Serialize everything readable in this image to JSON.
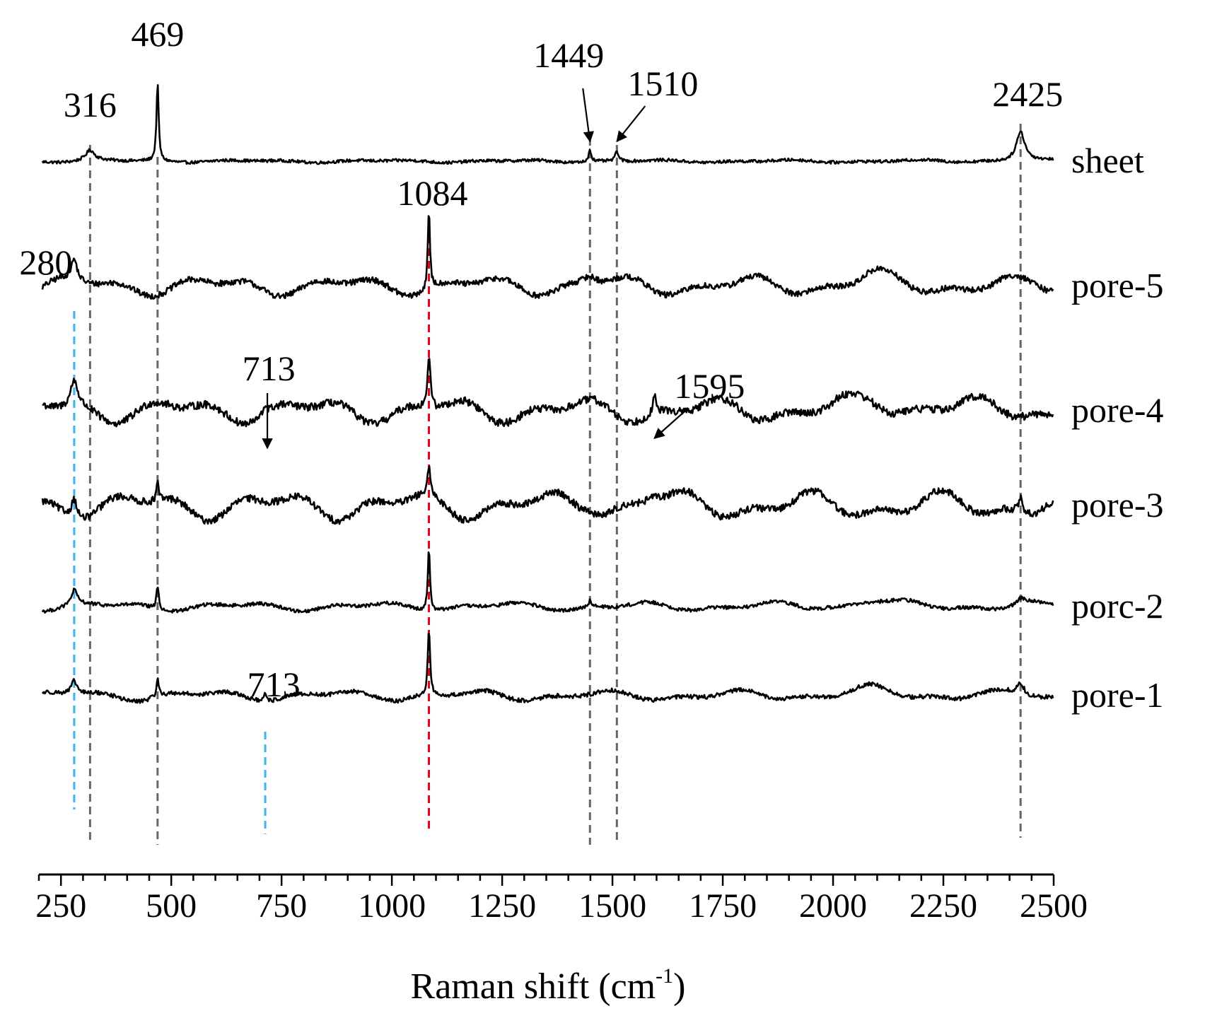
{
  "chart_data": {
    "type": "line",
    "title": "",
    "xlabel_main": "Raman shift (cm",
    "xlabel_sup": "-1",
    "xlabel_close": ")",
    "ylabel": "",
    "xlim": [
      200,
      2500
    ],
    "x_ticks": [
      250,
      500,
      750,
      1000,
      1250,
      1500,
      1750,
      2000,
      2250,
      2500
    ],
    "x_tick_labels": [
      "250",
      "500",
      "750",
      "1000",
      "1250",
      "1500",
      "1750",
      "2000",
      "2250",
      "2500"
    ],
    "x_minor_step": 50,
    "offset_spectra": true,
    "grid": false,
    "series": [
      {
        "name": "sheet",
        "baseline": 0,
        "peaks": [
          {
            "x": 316,
            "h": 0.35,
            "w": 12
          },
          {
            "x": 469,
            "h": 2.6,
            "w": 3
          },
          {
            "x": 1449,
            "h": 0.4,
            "w": 4
          },
          {
            "x": 1510,
            "h": 0.35,
            "w": 4
          },
          {
            "x": 2425,
            "h": 1.0,
            "w": 12
          }
        ],
        "noise": 0.05,
        "wave": 0.03
      },
      {
        "name": "pore-5",
        "baseline": -4.2,
        "peaks": [
          {
            "x": 280,
            "h": 0.7,
            "w": 8
          },
          {
            "x": 1084,
            "h": 2.6,
            "w": 3
          },
          {
            "x": 1449,
            "h": 0.3,
            "w": 20
          },
          {
            "x": 2090,
            "h": 0.3,
            "w": 40
          }
        ],
        "noise": 0.1,
        "wave": 0.22
      },
      {
        "name": "pore-4",
        "baseline": -8.4,
        "peaks": [
          {
            "x": 280,
            "h": 0.9,
            "w": 10
          },
          {
            "x": 713,
            "h": 0.3,
            "w": 4
          },
          {
            "x": 1084,
            "h": 1.8,
            "w": 4
          },
          {
            "x": 1595,
            "h": 0.6,
            "w": 4
          },
          {
            "x": 2090,
            "h": 0.3,
            "w": 50
          },
          {
            "x": 2230,
            "h": 0.2,
            "w": 40
          }
        ],
        "noise": 0.13,
        "wave": 0.28
      },
      {
        "name": "pore-3",
        "baseline": -11.6,
        "peaks": [
          {
            "x": 280,
            "h": 0.7,
            "w": 8
          },
          {
            "x": 469,
            "h": 0.6,
            "w": 3
          },
          {
            "x": 1084,
            "h": 0.9,
            "w": 4
          },
          {
            "x": 1449,
            "h": 0.2,
            "w": 20
          },
          {
            "x": 1590,
            "h": 0.3,
            "w": 25
          },
          {
            "x": 2425,
            "h": 0.5,
            "w": 6
          }
        ],
        "noise": 0.12,
        "wave": 0.32
      },
      {
        "name": "porc-2",
        "baseline": -15.0,
        "peaks": [
          {
            "x": 280,
            "h": 0.5,
            "w": 8
          },
          {
            "x": 469,
            "h": 0.8,
            "w": 3
          },
          {
            "x": 1084,
            "h": 2.1,
            "w": 3
          },
          {
            "x": 1449,
            "h": 0.2,
            "w": 4
          },
          {
            "x": 2090,
            "h": 0.2,
            "w": 50
          },
          {
            "x": 2425,
            "h": 0.2,
            "w": 10
          }
        ],
        "noise": 0.06,
        "wave": 0.1
      },
      {
        "name": "pore-1",
        "baseline": -18.0,
        "peaks": [
          {
            "x": 280,
            "h": 0.45,
            "w": 8
          },
          {
            "x": 469,
            "h": 0.65,
            "w": 3
          },
          {
            "x": 713,
            "h": 0.25,
            "w": 3
          },
          {
            "x": 1084,
            "h": 2.3,
            "w": 3
          },
          {
            "x": 2090,
            "h": 0.2,
            "w": 50
          },
          {
            "x": 2425,
            "h": 0.4,
            "w": 10
          }
        ],
        "noise": 0.07,
        "wave": 0.12
      }
    ],
    "annotations": [
      {
        "text": "469",
        "x": 469,
        "row": "sheet",
        "kind": "top"
      },
      {
        "text": "316",
        "x": 316,
        "row": "sheet",
        "kind": "side"
      },
      {
        "text": "1449",
        "x": 1449,
        "row": "sheet",
        "kind": "arrow"
      },
      {
        "text": "1510",
        "x": 1510,
        "row": "sheet",
        "kind": "arrow"
      },
      {
        "text": "2425",
        "x": 2425,
        "row": "sheet",
        "kind": "top"
      },
      {
        "text": "1084",
        "x": 1084,
        "row": "pore-5",
        "kind": "top"
      },
      {
        "text": "280",
        "x": 280,
        "row": "pore-5",
        "kind": "top"
      },
      {
        "text": "713",
        "x": 713,
        "row": "pore-4",
        "kind": "arrow"
      },
      {
        "text": "1595",
        "x": 1595,
        "row": "pore-4",
        "kind": "arrow"
      },
      {
        "text": "713",
        "x": 713,
        "row": "porc-2",
        "kind": "side"
      }
    ],
    "guide_lines": [
      {
        "x": 316,
        "color": "#666666"
      },
      {
        "x": 469,
        "color": "#666666"
      },
      {
        "x": 1449,
        "color": "#666666"
      },
      {
        "x": 1510,
        "color": "#666666"
      },
      {
        "x": 2425,
        "color": "#666666"
      },
      {
        "x": 1084,
        "color": "#e8001c"
      },
      {
        "x": 280,
        "color": "#3fb3ef"
      },
      {
        "x": 713,
        "color": "#3fb3ef"
      }
    ],
    "colors": {
      "line": "#000000",
      "gray_guide": "#666666",
      "red_guide": "#e8001c",
      "blue_guide": "#3fb3ef"
    }
  }
}
